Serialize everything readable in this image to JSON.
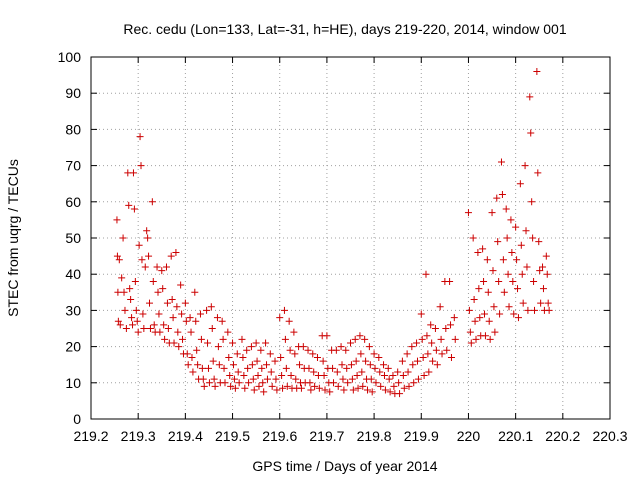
{
  "chart_data": {
    "type": "scatter",
    "title": "Rec. cedu (Lon=133, Lat=-31, h=HE), days 219-220, 2014, window 001",
    "xlabel": "GPS time / Days of year 2014",
    "ylabel": "STEC from uqrg / TECUs",
    "xlim": [
      219.2,
      220.3
    ],
    "ylim": [
      0,
      100
    ],
    "xticks": [
      "219.2",
      "219.3",
      "219.4",
      "219.5",
      "219.6",
      "219.7",
      "219.8",
      "219.9",
      "220",
      "220.1",
      "220.2",
      "220.3"
    ],
    "yticks": [
      "0",
      "10",
      "20",
      "30",
      "40",
      "50",
      "60",
      "70",
      "80",
      "90",
      "100"
    ],
    "grid": true,
    "marker": "plus",
    "color": "#cc0000",
    "points": [
      [
        219.255,
        55
      ],
      [
        219.256,
        45
      ],
      [
        219.257,
        35
      ],
      [
        219.258,
        27
      ],
      [
        219.26,
        44
      ],
      [
        219.262,
        26
      ],
      [
        219.265,
        39
      ],
      [
        219.268,
        50
      ],
      [
        219.27,
        35
      ],
      [
        219.272,
        30
      ],
      [
        219.275,
        25
      ],
      [
        219.278,
        68
      ],
      [
        219.28,
        59
      ],
      [
        219.282,
        36
      ],
      [
        219.284,
        33
      ],
      [
        219.286,
        28
      ],
      [
        219.288,
        26
      ],
      [
        219.29,
        68
      ],
      [
        219.292,
        58
      ],
      [
        219.294,
        38
      ],
      [
        219.296,
        30
      ],
      [
        219.298,
        27
      ],
      [
        219.3,
        24
      ],
      [
        219.302,
        48
      ],
      [
        219.304,
        78
      ],
      [
        219.306,
        70
      ],
      [
        219.308,
        44
      ],
      [
        219.31,
        29
      ],
      [
        219.312,
        25
      ],
      [
        219.315,
        42
      ],
      [
        219.318,
        52
      ],
      [
        219.32,
        50
      ],
      [
        219.322,
        45
      ],
      [
        219.324,
        32
      ],
      [
        219.326,
        25
      ],
      [
        219.33,
        60
      ],
      [
        219.332,
        38
      ],
      [
        219.334,
        26
      ],
      [
        219.336,
        24
      ],
      [
        219.34,
        42
      ],
      [
        219.342,
        35
      ],
      [
        219.344,
        29
      ],
      [
        219.346,
        24
      ],
      [
        219.35,
        41
      ],
      [
        219.352,
        36
      ],
      [
        219.354,
        26
      ],
      [
        219.356,
        22
      ],
      [
        219.36,
        42
      ],
      [
        219.362,
        32
      ],
      [
        219.364,
        25
      ],
      [
        219.366,
        21
      ],
      [
        219.37,
        45
      ],
      [
        219.372,
        33
      ],
      [
        219.374,
        28
      ],
      [
        219.376,
        21
      ],
      [
        219.38,
        46
      ],
      [
        219.382,
        31
      ],
      [
        219.384,
        24
      ],
      [
        219.386,
        20
      ],
      [
        219.39,
        37
      ],
      [
        219.392,
        29
      ],
      [
        219.394,
        22
      ],
      [
        219.396,
        18
      ],
      [
        219.4,
        32
      ],
      [
        219.402,
        27
      ],
      [
        219.404,
        18
      ],
      [
        219.406,
        15
      ],
      [
        219.41,
        28
      ],
      [
        219.412,
        24
      ],
      [
        219.414,
        17
      ],
      [
        219.416,
        13
      ],
      [
        219.42,
        35
      ],
      [
        219.422,
        27
      ],
      [
        219.424,
        19
      ],
      [
        219.426,
        15
      ],
      [
        219.428,
        11
      ],
      [
        219.432,
        29
      ],
      [
        219.434,
        22
      ],
      [
        219.436,
        14
      ],
      [
        219.438,
        11
      ],
      [
        219.44,
        9
      ],
      [
        219.445,
        30
      ],
      [
        219.447,
        21
      ],
      [
        219.449,
        14
      ],
      [
        219.451,
        10
      ],
      [
        219.455,
        31
      ],
      [
        219.457,
        25
      ],
      [
        219.459,
        16
      ],
      [
        219.461,
        11
      ],
      [
        219.463,
        9
      ],
      [
        219.468,
        28
      ],
      [
        219.47,
        20
      ],
      [
        219.472,
        15
      ],
      [
        219.474,
        10
      ],
      [
        219.478,
        27
      ],
      [
        219.48,
        22
      ],
      [
        219.482,
        14
      ],
      [
        219.484,
        10
      ],
      [
        219.49,
        24
      ],
      [
        219.492,
        17
      ],
      [
        219.494,
        12
      ],
      [
        219.496,
        9
      ],
      [
        219.5,
        21
      ],
      [
        219.502,
        15
      ],
      [
        219.504,
        11
      ],
      [
        219.506,
        8.5
      ],
      [
        219.51,
        18
      ],
      [
        219.512,
        13
      ],
      [
        219.514,
        10
      ],
      [
        219.52,
        22
      ],
      [
        219.522,
        17
      ],
      [
        219.524,
        12
      ],
      [
        219.526,
        8.5
      ],
      [
        219.53,
        19
      ],
      [
        219.532,
        14
      ],
      [
        219.534,
        10
      ],
      [
        219.54,
        20
      ],
      [
        219.542,
        15
      ],
      [
        219.544,
        11
      ],
      [
        219.546,
        8
      ],
      [
        219.55,
        21
      ],
      [
        219.552,
        16
      ],
      [
        219.554,
        12
      ],
      [
        219.556,
        9
      ],
      [
        219.56,
        19
      ],
      [
        219.562,
        14
      ],
      [
        219.564,
        10
      ],
      [
        219.566,
        7.5
      ],
      [
        219.57,
        21
      ],
      [
        219.572,
        15
      ],
      [
        219.574,
        11
      ],
      [
        219.58,
        18
      ],
      [
        219.582,
        13
      ],
      [
        219.584,
        9
      ],
      [
        219.59,
        16
      ],
      [
        219.592,
        11
      ],
      [
        219.594,
        8
      ],
      [
        219.6,
        28
      ],
      [
        219.602,
        17
      ],
      [
        219.604,
        12
      ],
      [
        219.606,
        8.5
      ],
      [
        219.61,
        30
      ],
      [
        219.612,
        22
      ],
      [
        219.614,
        14
      ],
      [
        219.616,
        9
      ],
      [
        219.62,
        27
      ],
      [
        219.622,
        19
      ],
      [
        219.624,
        12
      ],
      [
        219.626,
        8.5
      ],
      [
        219.63,
        24
      ],
      [
        219.632,
        18
      ],
      [
        219.634,
        11
      ],
      [
        219.636,
        8.5
      ],
      [
        219.64,
        20
      ],
      [
        219.642,
        15
      ],
      [
        219.644,
        10
      ],
      [
        219.646,
        8.5
      ],
      [
        219.65,
        20
      ],
      [
        219.652,
        14
      ],
      [
        219.654,
        10
      ],
      [
        219.66,
        19
      ],
      [
        219.662,
        14
      ],
      [
        219.664,
        10
      ],
      [
        219.666,
        8
      ],
      [
        219.67,
        18
      ],
      [
        219.672,
        13
      ],
      [
        219.674,
        9
      ],
      [
        219.68,
        17
      ],
      [
        219.682,
        12
      ],
      [
        219.684,
        8.5
      ],
      [
        219.69,
        23
      ],
      [
        219.692,
        16
      ],
      [
        219.694,
        12
      ],
      [
        219.696,
        8
      ],
      [
        219.7,
        23
      ],
      [
        219.702,
        14
      ],
      [
        219.704,
        10
      ],
      [
        219.706,
        7.5
      ],
      [
        219.71,
        19
      ],
      [
        219.712,
        14
      ],
      [
        219.714,
        10
      ],
      [
        219.72,
        19
      ],
      [
        219.722,
        13
      ],
      [
        219.724,
        9
      ],
      [
        219.73,
        20
      ],
      [
        219.732,
        15
      ],
      [
        219.734,
        11
      ],
      [
        219.736,
        8
      ],
      [
        219.74,
        19
      ],
      [
        219.742,
        14
      ],
      [
        219.744,
        10
      ],
      [
        219.75,
        21
      ],
      [
        219.752,
        15
      ],
      [
        219.754,
        11
      ],
      [
        219.756,
        8
      ],
      [
        219.76,
        22
      ],
      [
        219.762,
        16
      ],
      [
        219.764,
        12
      ],
      [
        219.766,
        8.5
      ],
      [
        219.77,
        23
      ],
      [
        219.772,
        18
      ],
      [
        219.774,
        13
      ],
      [
        219.776,
        9
      ],
      [
        219.78,
        22
      ],
      [
        219.782,
        16
      ],
      [
        219.784,
        11
      ],
      [
        219.786,
        8
      ],
      [
        219.79,
        20
      ],
      [
        219.792,
        15
      ],
      [
        219.794,
        11
      ],
      [
        219.796,
        7.5
      ],
      [
        219.8,
        18
      ],
      [
        219.802,
        14
      ],
      [
        219.804,
        10
      ],
      [
        219.81,
        17
      ],
      [
        219.812,
        13
      ],
      [
        219.814,
        9
      ],
      [
        219.82,
        15
      ],
      [
        219.822,
        12
      ],
      [
        219.824,
        8
      ],
      [
        219.83,
        14
      ],
      [
        219.832,
        11
      ],
      [
        219.834,
        7.5
      ],
      [
        219.84,
        12
      ],
      [
        219.842,
        9
      ],
      [
        219.844,
        7
      ],
      [
        219.85,
        13
      ],
      [
        219.852,
        10
      ],
      [
        219.854,
        7
      ],
      [
        219.86,
        16
      ],
      [
        219.862,
        12
      ],
      [
        219.864,
        8.5
      ],
      [
        219.87,
        18
      ],
      [
        219.872,
        13
      ],
      [
        219.874,
        9
      ],
      [
        219.88,
        20
      ],
      [
        219.882,
        15
      ],
      [
        219.884,
        10
      ],
      [
        219.89,
        21
      ],
      [
        219.892,
        16
      ],
      [
        219.894,
        11
      ],
      [
        219.9,
        29
      ],
      [
        219.902,
        22
      ],
      [
        219.904,
        17
      ],
      [
        219.906,
        12
      ],
      [
        219.91,
        40
      ],
      [
        219.912,
        23
      ],
      [
        219.914,
        18
      ],
      [
        219.916,
        13
      ],
      [
        219.92,
        26
      ],
      [
        219.922,
        21
      ],
      [
        219.924,
        16
      ],
      [
        219.93,
        25
      ],
      [
        219.932,
        19
      ],
      [
        219.934,
        15
      ],
      [
        219.94,
        31
      ],
      [
        219.942,
        22
      ],
      [
        219.944,
        18
      ],
      [
        219.95,
        38
      ],
      [
        219.952,
        25
      ],
      [
        219.954,
        19
      ],
      [
        219.96,
        38
      ],
      [
        219.962,
        26
      ],
      [
        219.964,
        17
      ],
      [
        219.97,
        28
      ],
      [
        219.972,
        22
      ],
      [
        220.0,
        57
      ],
      [
        220.002,
        30
      ],
      [
        220.004,
        24
      ],
      [
        220.006,
        21
      ],
      [
        220.01,
        50
      ],
      [
        220.012,
        33
      ],
      [
        220.014,
        27
      ],
      [
        220.016,
        22
      ],
      [
        220.02,
        46
      ],
      [
        220.022,
        36
      ],
      [
        220.024,
        28
      ],
      [
        220.026,
        23
      ],
      [
        220.03,
        47
      ],
      [
        220.032,
        38
      ],
      [
        220.034,
        29
      ],
      [
        220.036,
        23
      ],
      [
        220.04,
        44
      ],
      [
        220.042,
        35
      ],
      [
        220.044,
        27
      ],
      [
        220.046,
        22
      ],
      [
        220.05,
        57
      ],
      [
        220.052,
        41
      ],
      [
        220.054,
        31
      ],
      [
        220.056,
        24
      ],
      [
        220.06,
        61
      ],
      [
        220.062,
        49
      ],
      [
        220.064,
        38
      ],
      [
        220.066,
        29
      ],
      [
        220.07,
        71
      ],
      [
        220.072,
        62
      ],
      [
        220.074,
        44
      ],
      [
        220.076,
        35
      ],
      [
        220.08,
        58
      ],
      [
        220.082,
        50
      ],
      [
        220.084,
        40
      ],
      [
        220.086,
        31
      ],
      [
        220.09,
        55
      ],
      [
        220.092,
        46
      ],
      [
        220.094,
        38
      ],
      [
        220.096,
        29
      ],
      [
        220.1,
        53
      ],
      [
        220.102,
        44
      ],
      [
        220.104,
        36
      ],
      [
        220.106,
        28
      ],
      [
        220.11,
        65
      ],
      [
        220.112,
        48
      ],
      [
        220.114,
        40
      ],
      [
        220.116,
        32
      ],
      [
        220.12,
        70
      ],
      [
        220.122,
        52
      ],
      [
        220.124,
        42
      ],
      [
        220.126,
        30
      ],
      [
        220.13,
        89
      ],
      [
        220.132,
        79
      ],
      [
        220.134,
        60
      ],
      [
        220.136,
        50
      ],
      [
        220.138,
        38
      ],
      [
        220.14,
        30
      ],
      [
        220.145,
        96
      ],
      [
        220.147,
        68
      ],
      [
        220.149,
        49
      ],
      [
        220.151,
        41
      ],
      [
        220.153,
        32
      ],
      [
        220.157,
        42
      ],
      [
        220.159,
        36
      ],
      [
        220.161,
        30
      ],
      [
        220.165,
        45
      ],
      [
        220.167,
        40
      ],
      [
        220.169,
        32
      ],
      [
        220.171,
        30
      ]
    ]
  }
}
